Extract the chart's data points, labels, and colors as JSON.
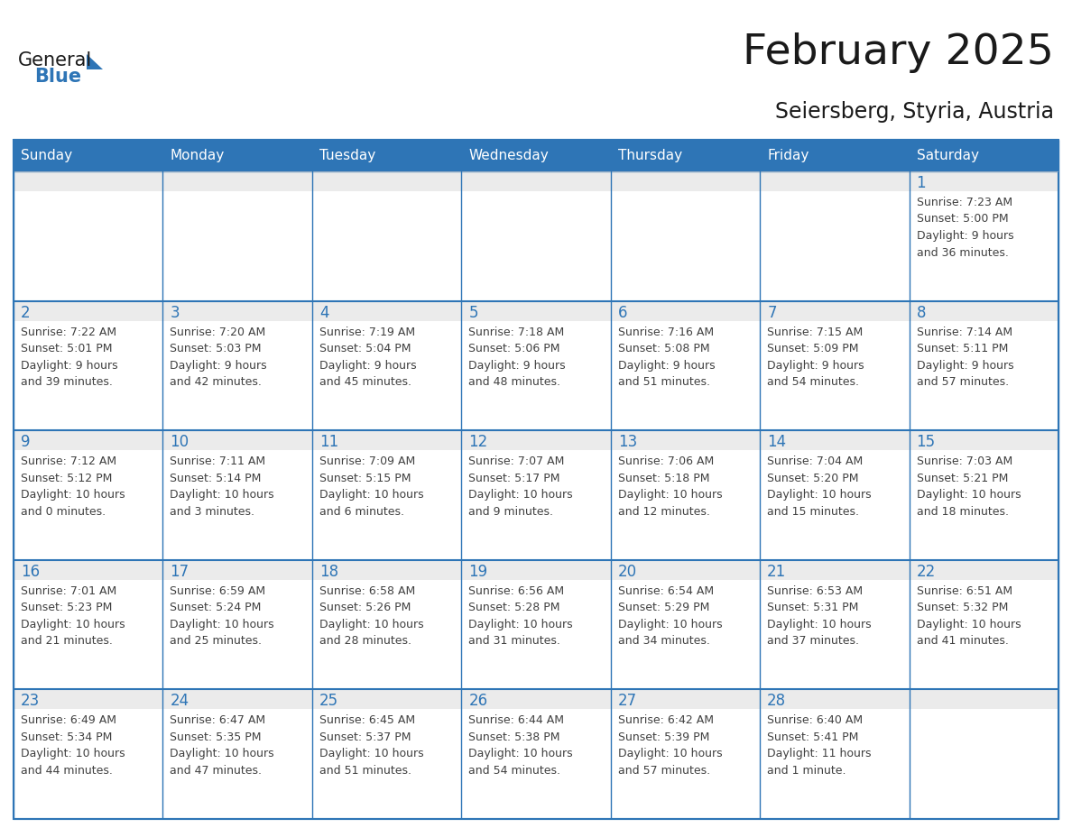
{
  "title": "February 2025",
  "subtitle": "Seiersberg, Styria, Austria",
  "days_of_week": [
    "Sunday",
    "Monday",
    "Tuesday",
    "Wednesday",
    "Thursday",
    "Friday",
    "Saturday"
  ],
  "header_bg": "#2E75B6",
  "header_text_color": "#FFFFFF",
  "border_color": "#2E75B6",
  "day_num_color": "#2E75B6",
  "text_color": "#404040",
  "logo_general_color": "#1a1a1a",
  "logo_blue_color": "#2E75B6",
  "cell_top_bg": "#E8E8E8",
  "cell_body_bg": "#FFFFFF",
  "calendar_data": [
    [
      {
        "day": null,
        "info": null
      },
      {
        "day": null,
        "info": null
      },
      {
        "day": null,
        "info": null
      },
      {
        "day": null,
        "info": null
      },
      {
        "day": null,
        "info": null
      },
      {
        "day": null,
        "info": null
      },
      {
        "day": 1,
        "info": "Sunrise: 7:23 AM\nSunset: 5:00 PM\nDaylight: 9 hours\nand 36 minutes."
      }
    ],
    [
      {
        "day": 2,
        "info": "Sunrise: 7:22 AM\nSunset: 5:01 PM\nDaylight: 9 hours\nand 39 minutes."
      },
      {
        "day": 3,
        "info": "Sunrise: 7:20 AM\nSunset: 5:03 PM\nDaylight: 9 hours\nand 42 minutes."
      },
      {
        "day": 4,
        "info": "Sunrise: 7:19 AM\nSunset: 5:04 PM\nDaylight: 9 hours\nand 45 minutes."
      },
      {
        "day": 5,
        "info": "Sunrise: 7:18 AM\nSunset: 5:06 PM\nDaylight: 9 hours\nand 48 minutes."
      },
      {
        "day": 6,
        "info": "Sunrise: 7:16 AM\nSunset: 5:08 PM\nDaylight: 9 hours\nand 51 minutes."
      },
      {
        "day": 7,
        "info": "Sunrise: 7:15 AM\nSunset: 5:09 PM\nDaylight: 9 hours\nand 54 minutes."
      },
      {
        "day": 8,
        "info": "Sunrise: 7:14 AM\nSunset: 5:11 PM\nDaylight: 9 hours\nand 57 minutes."
      }
    ],
    [
      {
        "day": 9,
        "info": "Sunrise: 7:12 AM\nSunset: 5:12 PM\nDaylight: 10 hours\nand 0 minutes."
      },
      {
        "day": 10,
        "info": "Sunrise: 7:11 AM\nSunset: 5:14 PM\nDaylight: 10 hours\nand 3 minutes."
      },
      {
        "day": 11,
        "info": "Sunrise: 7:09 AM\nSunset: 5:15 PM\nDaylight: 10 hours\nand 6 minutes."
      },
      {
        "day": 12,
        "info": "Sunrise: 7:07 AM\nSunset: 5:17 PM\nDaylight: 10 hours\nand 9 minutes."
      },
      {
        "day": 13,
        "info": "Sunrise: 7:06 AM\nSunset: 5:18 PM\nDaylight: 10 hours\nand 12 minutes."
      },
      {
        "day": 14,
        "info": "Sunrise: 7:04 AM\nSunset: 5:20 PM\nDaylight: 10 hours\nand 15 minutes."
      },
      {
        "day": 15,
        "info": "Sunrise: 7:03 AM\nSunset: 5:21 PM\nDaylight: 10 hours\nand 18 minutes."
      }
    ],
    [
      {
        "day": 16,
        "info": "Sunrise: 7:01 AM\nSunset: 5:23 PM\nDaylight: 10 hours\nand 21 minutes."
      },
      {
        "day": 17,
        "info": "Sunrise: 6:59 AM\nSunset: 5:24 PM\nDaylight: 10 hours\nand 25 minutes."
      },
      {
        "day": 18,
        "info": "Sunrise: 6:58 AM\nSunset: 5:26 PM\nDaylight: 10 hours\nand 28 minutes."
      },
      {
        "day": 19,
        "info": "Sunrise: 6:56 AM\nSunset: 5:28 PM\nDaylight: 10 hours\nand 31 minutes."
      },
      {
        "day": 20,
        "info": "Sunrise: 6:54 AM\nSunset: 5:29 PM\nDaylight: 10 hours\nand 34 minutes."
      },
      {
        "day": 21,
        "info": "Sunrise: 6:53 AM\nSunset: 5:31 PM\nDaylight: 10 hours\nand 37 minutes."
      },
      {
        "day": 22,
        "info": "Sunrise: 6:51 AM\nSunset: 5:32 PM\nDaylight: 10 hours\nand 41 minutes."
      }
    ],
    [
      {
        "day": 23,
        "info": "Sunrise: 6:49 AM\nSunset: 5:34 PM\nDaylight: 10 hours\nand 44 minutes."
      },
      {
        "day": 24,
        "info": "Sunrise: 6:47 AM\nSunset: 5:35 PM\nDaylight: 10 hours\nand 47 minutes."
      },
      {
        "day": 25,
        "info": "Sunrise: 6:45 AM\nSunset: 5:37 PM\nDaylight: 10 hours\nand 51 minutes."
      },
      {
        "day": 26,
        "info": "Sunrise: 6:44 AM\nSunset: 5:38 PM\nDaylight: 10 hours\nand 54 minutes."
      },
      {
        "day": 27,
        "info": "Sunrise: 6:42 AM\nSunset: 5:39 PM\nDaylight: 10 hours\nand 57 minutes."
      },
      {
        "day": 28,
        "info": "Sunrise: 6:40 AM\nSunset: 5:41 PM\nDaylight: 11 hours\nand 1 minute."
      },
      {
        "day": null,
        "info": null
      }
    ]
  ]
}
